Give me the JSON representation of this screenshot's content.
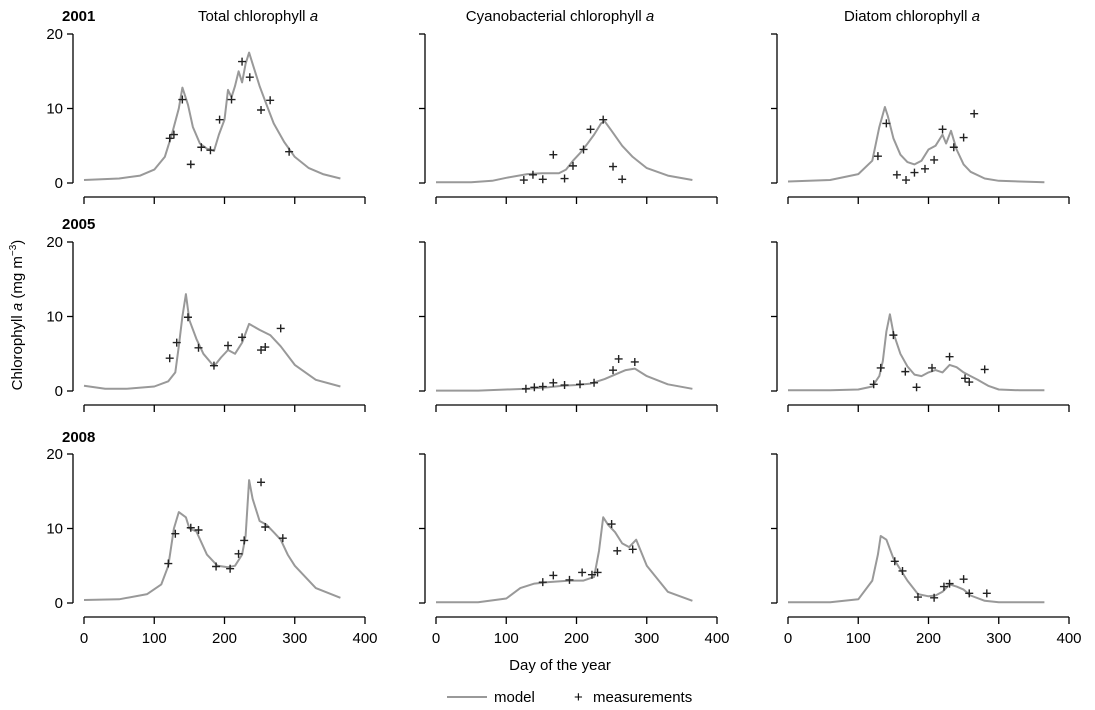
{
  "figure": {
    "ylabel": "Chlorophyll a (mg m⁻³)",
    "ylabel_main": "Chlorophyll ",
    "ylabel_italic": "a",
    "ylabel_units": " (mg m",
    "ylabel_sup": "−3",
    "ylabel_close": ")",
    "xlabel": "Day of the year",
    "column_titles": [
      {
        "text": "Total chlorophyll ",
        "italic": "a"
      },
      {
        "text": "Cyanobacterial chlorophyll ",
        "italic": "a"
      },
      {
        "text": "Diatom chlorophyll ",
        "italic": "a"
      }
    ],
    "year_labels": [
      "2001",
      "2005",
      "2008"
    ],
    "legend": {
      "model": "model",
      "measurements": "measurements",
      "marker": "+",
      "placement": "bottom-center"
    },
    "x_ticks": [
      "0",
      "100",
      "200",
      "300",
      "400"
    ],
    "y_ticks": [
      "0",
      "10",
      "20"
    ],
    "model_color": "#999999",
    "marker_color": "#222222"
  },
  "chart_data": [
    {
      "type": "line",
      "row": 0,
      "col": 0,
      "year": "2001",
      "panel": "Total chlorophyll a",
      "xlim": [
        0,
        400
      ],
      "ylim": [
        0,
        20
      ],
      "grid": false,
      "series": [
        {
          "name": "model",
          "kind": "line",
          "x": [
            0,
            50,
            80,
            100,
            115,
            125,
            135,
            140,
            148,
            155,
            165,
            175,
            180,
            185,
            192,
            200,
            205,
            210,
            215,
            220,
            225,
            230,
            235,
            240,
            250,
            260,
            270,
            285,
            300,
            320,
            340,
            365
          ],
          "y": [
            0.4,
            0.6,
            1.0,
            1.8,
            3.5,
            6.5,
            10,
            12.8,
            10.5,
            7.5,
            5.3,
            4.6,
            4.5,
            4.3,
            6.5,
            8.5,
            12.5,
            11.5,
            13,
            15,
            13.5,
            16,
            17.5,
            16,
            13,
            10.5,
            8,
            5.5,
            3.5,
            2,
            1.2,
            0.6
          ]
        },
        {
          "name": "measurements",
          "kind": "scatter",
          "x": [
            122,
            128,
            140,
            152,
            167,
            180,
            193,
            210,
            225,
            236,
            252,
            265,
            292
          ],
          "y": [
            6,
            6.5,
            11.2,
            2.5,
            4.8,
            4.4,
            8.5,
            11.2,
            16.3,
            14.2,
            9.8,
            11.1,
            4.2
          ]
        }
      ]
    },
    {
      "type": "line",
      "row": 0,
      "col": 1,
      "year": "2001",
      "panel": "Cyanobacterial chlorophyll a",
      "xlim": [
        0,
        400
      ],
      "ylim": [
        0,
        20
      ],
      "grid": false,
      "series": [
        {
          "name": "model",
          "kind": "line",
          "x": [
            0,
            50,
            80,
            100,
            130,
            150,
            175,
            185,
            195,
            205,
            215,
            225,
            235,
            240,
            250,
            265,
            280,
            300,
            330,
            365
          ],
          "y": [
            0.1,
            0.1,
            0.3,
            0.7,
            1.2,
            1.3,
            1.3,
            1.8,
            3,
            4,
            5.2,
            6.5,
            8,
            8.3,
            7,
            5,
            3.5,
            2,
            1,
            0.4
          ]
        },
        {
          "name": "measurements",
          "kind": "scatter",
          "x": [
            125,
            138,
            152,
            167,
            183,
            195,
            210,
            220,
            238,
            252,
            265
          ],
          "y": [
            0.4,
            1.1,
            0.5,
            3.8,
            0.6,
            2.3,
            4.5,
            7.2,
            8.5,
            2.2,
            0.5
          ]
        }
      ]
    },
    {
      "type": "line",
      "row": 0,
      "col": 2,
      "year": "2001",
      "panel": "Diatom chlorophyll a",
      "xlim": [
        0,
        400
      ],
      "ylim": [
        0,
        20
      ],
      "grid": false,
      "series": [
        {
          "name": "model",
          "kind": "line",
          "x": [
            0,
            60,
            100,
            120,
            130,
            138,
            142,
            150,
            160,
            170,
            180,
            190,
            200,
            210,
            220,
            225,
            232,
            240,
            250,
            260,
            280,
            300,
            330,
            365
          ],
          "y": [
            0.2,
            0.4,
            1.2,
            3,
            7.5,
            10.2,
            9,
            6,
            3.8,
            2.8,
            2.5,
            3,
            4.5,
            5,
            6.5,
            5.3,
            7,
            4.5,
            2.5,
            1.5,
            0.6,
            0.3,
            0.2,
            0.1
          ]
        },
        {
          "name": "measurements",
          "kind": "scatter",
          "x": [
            128,
            140,
            155,
            168,
            180,
            195,
            208,
            220,
            236,
            250,
            265
          ],
          "y": [
            3.6,
            8,
            1.1,
            0.4,
            1.4,
            1.9,
            3.1,
            7.2,
            4.8,
            6.1,
            9.3
          ]
        }
      ]
    },
    {
      "type": "line",
      "row": 1,
      "col": 0,
      "year": "2005",
      "panel": "Total chlorophyll a",
      "xlim": [
        0,
        400
      ],
      "ylim": [
        0,
        20
      ],
      "grid": false,
      "series": [
        {
          "name": "model",
          "kind": "line",
          "x": [
            0,
            30,
            60,
            100,
            120,
            130,
            135,
            140,
            145,
            150,
            160,
            170,
            185,
            195,
            205,
            215,
            225,
            235,
            250,
            265,
            280,
            300,
            330,
            365
          ],
          "y": [
            0.7,
            0.3,
            0.3,
            0.6,
            1.3,
            2.5,
            6,
            10,
            13,
            9.5,
            7,
            5,
            3.3,
            4.5,
            5.5,
            5,
            6.5,
            9,
            8.2,
            7.5,
            6,
            3.5,
            1.5,
            0.6
          ]
        },
        {
          "name": "measurements",
          "kind": "scatter",
          "x": [
            122,
            132,
            148,
            163,
            185,
            205,
            225,
            252,
            258,
            280
          ],
          "y": [
            4.4,
            6.5,
            9.9,
            5.8,
            3.4,
            6.1,
            7.2,
            5.5,
            5.9,
            8.4
          ]
        }
      ]
    },
    {
      "type": "line",
      "row": 1,
      "col": 1,
      "year": "2005",
      "panel": "Cyanobacterial chlorophyll a",
      "xlim": [
        0,
        400
      ],
      "ylim": [
        0,
        20
      ],
      "grid": false,
      "series": [
        {
          "name": "model",
          "kind": "line",
          "x": [
            0,
            60,
            100,
            130,
            160,
            180,
            200,
            220,
            240,
            255,
            270,
            283,
            300,
            330,
            365
          ],
          "y": [
            0.05,
            0.05,
            0.2,
            0.3,
            0.5,
            0.7,
            0.8,
            1.0,
            1.6,
            2.2,
            2.8,
            3,
            2,
            0.9,
            0.3
          ]
        },
        {
          "name": "measurements",
          "kind": "scatter",
          "x": [
            128,
            140,
            152,
            167,
            183,
            205,
            225,
            252,
            260,
            283
          ],
          "y": [
            0.3,
            0.5,
            0.6,
            1.1,
            0.8,
            0.9,
            1.1,
            2.8,
            4.3,
            3.9
          ]
        }
      ]
    },
    {
      "type": "line",
      "row": 1,
      "col": 2,
      "year": "2005",
      "panel": "Diatom chlorophyll a",
      "xlim": [
        0,
        400
      ],
      "ylim": [
        0,
        20
      ],
      "grid": false,
      "series": [
        {
          "name": "model",
          "kind": "line",
          "x": [
            0,
            60,
            100,
            120,
            130,
            135,
            140,
            145,
            150,
            160,
            170,
            180,
            190,
            200,
            210,
            220,
            230,
            240,
            250,
            260,
            270,
            285,
            300,
            330,
            365
          ],
          "y": [
            0.1,
            0.1,
            0.2,
            0.6,
            2,
            4,
            8,
            10.3,
            7.8,
            5,
            3.3,
            2.2,
            2,
            2.5,
            2.8,
            2.5,
            3.5,
            3.2,
            2.5,
            2,
            1.5,
            0.7,
            0.2,
            0.1,
            0.1
          ]
        },
        {
          "name": "measurements",
          "kind": "scatter",
          "x": [
            122,
            132,
            150,
            167,
            183,
            205,
            230,
            252,
            258,
            280
          ],
          "y": [
            0.9,
            3.1,
            7.5,
            2.6,
            0.5,
            3.1,
            4.6,
            1.7,
            1.2,
            2.9
          ]
        }
      ]
    },
    {
      "type": "line",
      "row": 2,
      "col": 0,
      "year": "2008",
      "panel": "Total chlorophyll a",
      "xlim": [
        0,
        400
      ],
      "ylim": [
        0,
        20
      ],
      "grid": false,
      "series": [
        {
          "name": "model",
          "kind": "line",
          "x": [
            0,
            50,
            90,
            110,
            120,
            128,
            135,
            145,
            150,
            160,
            175,
            190,
            205,
            215,
            225,
            230,
            235,
            240,
            250,
            260,
            270,
            280,
            290,
            300,
            330,
            365
          ],
          "y": [
            0.4,
            0.5,
            1.2,
            2.5,
            5,
            10,
            12.2,
            11.5,
            10,
            9.6,
            6.5,
            5,
            4.8,
            5,
            6.5,
            9,
            16.5,
            14,
            11,
            10.5,
            9.5,
            8.5,
            6.5,
            5,
            2,
            0.7
          ]
        },
        {
          "name": "measurements",
          "kind": "scatter",
          "x": [
            120,
            130,
            152,
            163,
            188,
            208,
            220,
            228,
            252,
            258,
            283
          ],
          "y": [
            5.3,
            9.3,
            10.1,
            9.8,
            4.9,
            4.6,
            6.6,
            8.4,
            16.2,
            10.2,
            8.7
          ]
        }
      ]
    },
    {
      "type": "line",
      "row": 2,
      "col": 1,
      "year": "2008",
      "panel": "Cyanobacterial chlorophyll a",
      "xlim": [
        0,
        400
      ],
      "ylim": [
        0,
        20
      ],
      "grid": false,
      "series": [
        {
          "name": "model",
          "kind": "line",
          "x": [
            0,
            60,
            100,
            120,
            140,
            160,
            190,
            210,
            225,
            232,
            238,
            245,
            255,
            265,
            275,
            285,
            300,
            330,
            365
          ],
          "y": [
            0.1,
            0.1,
            0.6,
            2,
            2.6,
            2.8,
            3,
            3,
            3.5,
            7,
            11.5,
            10.5,
            9.5,
            8,
            7.5,
            8.5,
            5,
            1.5,
            0.3
          ]
        },
        {
          "name": "measurements",
          "kind": "scatter",
          "x": [
            152,
            167,
            190,
            208,
            222,
            230,
            250,
            258,
            280
          ],
          "y": [
            2.8,
            3.7,
            3.1,
            4.1,
            3.8,
            4.1,
            10.6,
            7,
            7.2
          ]
        }
      ]
    },
    {
      "type": "line",
      "row": 2,
      "col": 2,
      "year": "2008",
      "panel": "Diatom chlorophyll a",
      "xlim": [
        0,
        400
      ],
      "ylim": [
        0,
        20
      ],
      "grid": false,
      "series": [
        {
          "name": "model",
          "kind": "line",
          "x": [
            0,
            60,
            100,
            120,
            128,
            132,
            140,
            150,
            160,
            170,
            185,
            200,
            210,
            220,
            230,
            240,
            250,
            260,
            280,
            300,
            330,
            365
          ],
          "y": [
            0.1,
            0.1,
            0.5,
            3,
            6.5,
            9,
            8.5,
            6,
            4.5,
            3,
            1.2,
            0.9,
            1,
            1.5,
            2.5,
            2.2,
            1.8,
            1,
            0.3,
            0.1,
            0.1,
            0.1
          ]
        },
        {
          "name": "measurements",
          "kind": "scatter",
          "x": [
            152,
            163,
            185,
            208,
            222,
            230,
            250,
            258,
            283
          ],
          "y": [
            5.6,
            4.3,
            0.8,
            0.7,
            2.2,
            2.6,
            3.2,
            1.3,
            1.3
          ]
        }
      ]
    }
  ]
}
